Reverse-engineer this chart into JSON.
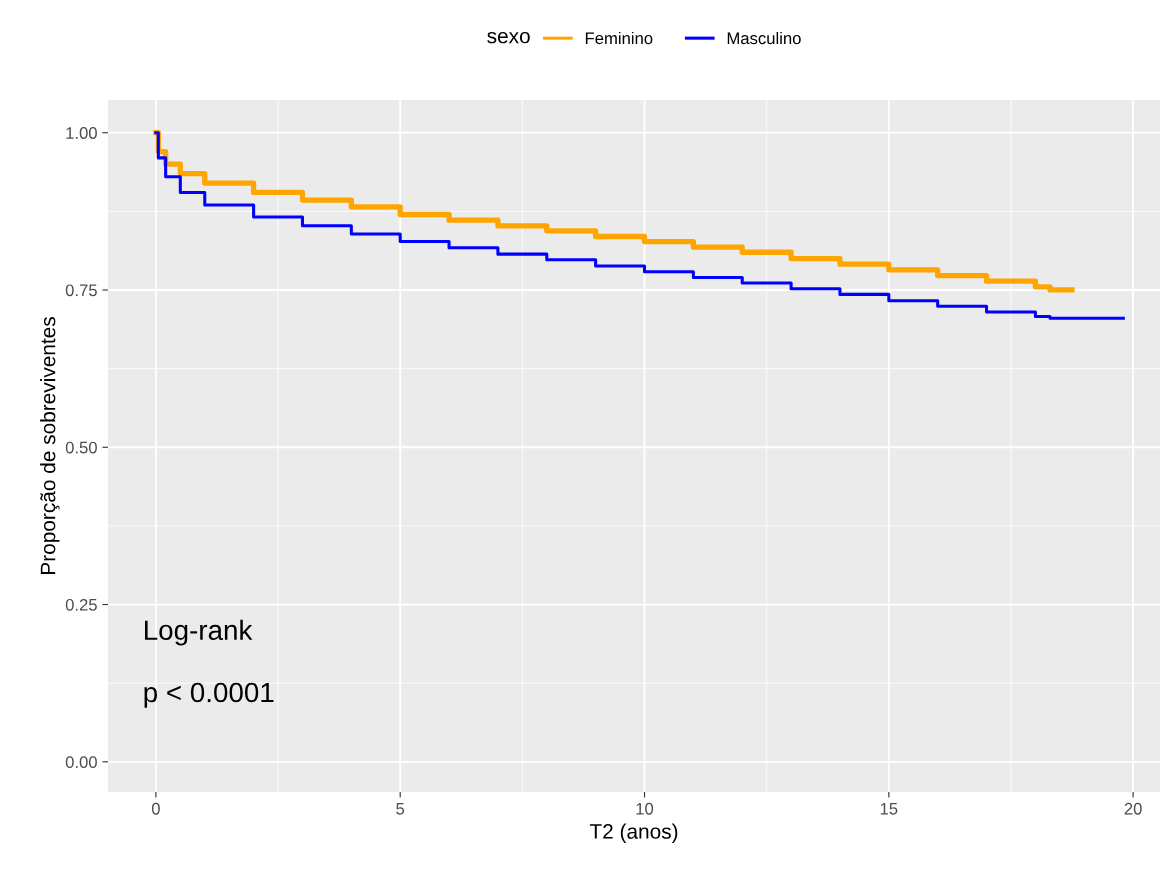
{
  "chart_data": {
    "type": "step",
    "xlabel": "T2 (anos)",
    "ylabel": "Proporção de sobreviventes",
    "legend_title": "sexo",
    "legend": "top",
    "grid": true,
    "xlim": [
      -0.98,
      20.55
    ],
    "ylim": [
      -0.048,
      1.052
    ],
    "xticks": [
      0,
      5,
      10,
      15,
      20
    ],
    "yticks": [
      {
        "value": 0,
        "label": "0.00"
      },
      {
        "value": 0.25,
        "label": "0.25"
      },
      {
        "value": 0.5,
        "label": "0.50"
      },
      {
        "value": 0.75,
        "label": "0.75"
      },
      {
        "value": 1,
        "label": "1.00"
      }
    ],
    "annotations": [
      "Log-rank",
      "p < 0.0001"
    ],
    "series": [
      {
        "name": "Feminino",
        "color": "#ffa500",
        "x": [
          0,
          0.05,
          0.2,
          0.5,
          1,
          2,
          3,
          4,
          5,
          6,
          7,
          8,
          9,
          10,
          11,
          12,
          13,
          14,
          15,
          16,
          17,
          18,
          18.3,
          18.75
        ],
        "values": [
          1,
          0.97,
          0.95,
          0.935,
          0.92,
          0.905,
          0.893,
          0.882,
          0.87,
          0.861,
          0.852,
          0.844,
          0.835,
          0.827,
          0.818,
          0.81,
          0.8,
          0.791,
          0.782,
          0.773,
          0.764,
          0.755,
          0.75,
          0.75
        ]
      },
      {
        "name": "Masculino",
        "color": "#0000ff",
        "x": [
          0,
          0.05,
          0.2,
          0.5,
          1,
          2,
          3,
          4,
          5,
          6,
          7,
          8,
          9,
          10,
          11,
          12,
          13,
          14,
          15,
          16,
          17,
          18,
          18.3,
          19.8
        ],
        "values": [
          1,
          0.96,
          0.93,
          0.905,
          0.885,
          0.866,
          0.852,
          0.839,
          0.827,
          0.817,
          0.807,
          0.798,
          0.788,
          0.779,
          0.77,
          0.761,
          0.752,
          0.743,
          0.733,
          0.724,
          0.715,
          0.708,
          0.705,
          0.705
        ]
      }
    ]
  }
}
